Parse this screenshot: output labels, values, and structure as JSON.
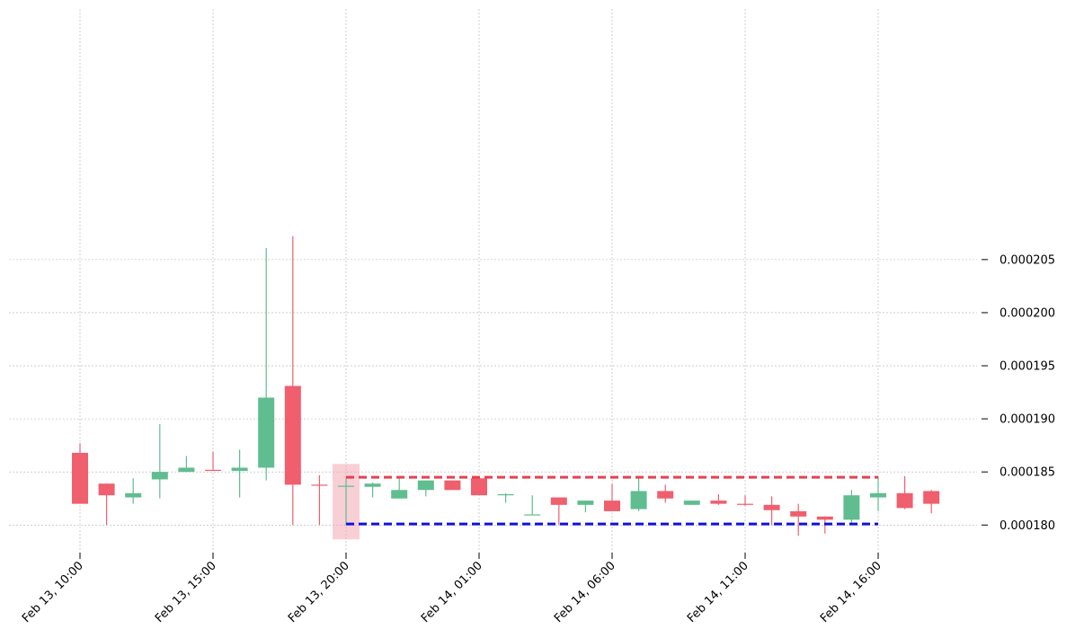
{
  "chart_data": {
    "type": "candlestick",
    "title": "",
    "xlabel": "",
    "ylabel": "",
    "x_start": "2024-02-13 10:00",
    "interval_minutes": 60,
    "ylim": [
      0.0001774,
      0.0002286
    ],
    "y_ticks": [
      "0.000180",
      "0.000185",
      "0.000190",
      "0.000195",
      "0.000200",
      "0.000205"
    ],
    "y_tick_values": [
      0.00018,
      0.000185,
      0.00019,
      0.000195,
      0.0002,
      0.000205
    ],
    "x_tick_labels": [
      "Feb 13, 10:00",
      "Feb 13, 15:00",
      "Feb 13, 20:00",
      "Feb 14, 01:00",
      "Feb 14, 06:00",
      "Feb 14, 11:00",
      "Feb 14, 16:00"
    ],
    "x_tick_indices": [
      0,
      5,
      10,
      15,
      20,
      25,
      30
    ],
    "grid": true,
    "colors": {
      "up": "#5fbd8f",
      "down": "#ef5f6e",
      "highlight": "#f4a8b4",
      "resistance": "#e8404f",
      "support": "#1111dd"
    },
    "candles": [
      {
        "open": 0.0001868,
        "high": 0.0001877,
        "low": 0.000182,
        "close": 0.000182
      },
      {
        "open": 0.0001839,
        "high": 0.0001839,
        "low": 0.00018,
        "close": 0.0001828
      },
      {
        "open": 0.0001826,
        "high": 0.0001844,
        "low": 0.000182,
        "close": 0.000183
      },
      {
        "open": 0.0001843,
        "high": 0.0001895,
        "low": 0.0001825,
        "close": 0.000185
      },
      {
        "open": 0.000185,
        "high": 0.0001865,
        "low": 0.000185,
        "close": 0.0001854
      },
      {
        "open": 0.0001852,
        "high": 0.0001869,
        "low": 0.0001852,
        "close": 0.0001851
      },
      {
        "open": 0.0001851,
        "high": 0.0001871,
        "low": 0.0001826,
        "close": 0.0001854
      },
      {
        "open": 0.0001854,
        "high": 0.0002061,
        "low": 0.0001842,
        "close": 0.000192
      },
      {
        "open": 0.0001931,
        "high": 0.0002072,
        "low": 0.00018,
        "close": 0.0001838
      },
      {
        "open": 0.0001838,
        "high": 0.0001847,
        "low": 0.00018,
        "close": 0.0001837
      },
      {
        "open": 0.0001837,
        "high": 0.0001844,
        "low": 0.00018,
        "close": 0.0001837
      },
      {
        "open": 0.0001836,
        "high": 0.000184,
        "low": 0.0001826,
        "close": 0.0001839
      },
      {
        "open": 0.0001825,
        "high": 0.0001844,
        "low": 0.0001825,
        "close": 0.0001833
      },
      {
        "open": 0.0001833,
        "high": 0.0001842,
        "low": 0.0001827,
        "close": 0.0001842
      },
      {
        "open": 0.0001842,
        "high": 0.0001842,
        "low": 0.0001833,
        "close": 0.0001833
      },
      {
        "open": 0.0001844,
        "high": 0.0001844,
        "low": 0.0001828,
        "close": 0.0001828
      },
      {
        "open": 0.0001828,
        "high": 0.000183,
        "low": 0.0001821,
        "close": 0.0001829
      },
      {
        "open": 0.000181,
        "high": 0.0001828,
        "low": 0.000181,
        "close": 0.000181
      },
      {
        "open": 0.0001826,
        "high": 0.0001826,
        "low": 0.00018,
        "close": 0.0001819
      },
      {
        "open": 0.0001819,
        "high": 0.0001823,
        "low": 0.0001812,
        "close": 0.0001823
      },
      {
        "open": 0.0001823,
        "high": 0.0001839,
        "low": 0.0001813,
        "close": 0.0001813
      },
      {
        "open": 0.0001815,
        "high": 0.0001844,
        "low": 0.0001813,
        "close": 0.0001832
      },
      {
        "open": 0.0001832,
        "high": 0.0001838,
        "low": 0.0001821,
        "close": 0.0001825
      },
      {
        "open": 0.0001819,
        "high": 0.0001823,
        "low": 0.0001819,
        "close": 0.0001823
      },
      {
        "open": 0.0001823,
        "high": 0.0001829,
        "low": 0.0001819,
        "close": 0.000182
      },
      {
        "open": 0.000182,
        "high": 0.0001828,
        "low": 0.0001818,
        "close": 0.0001819
      },
      {
        "open": 0.0001819,
        "high": 0.0001827,
        "low": 0.00018,
        "close": 0.0001814
      },
      {
        "open": 0.0001813,
        "high": 0.000182,
        "low": 0.000179,
        "close": 0.0001808
      },
      {
        "open": 0.0001808,
        "high": 0.0001808,
        "low": 0.0001792,
        "close": 0.0001805
      },
      {
        "open": 0.0001805,
        "high": 0.0001833,
        "low": 0.00018,
        "close": 0.0001828
      },
      {
        "open": 0.0001826,
        "high": 0.0001846,
        "low": 0.0001813,
        "close": 0.000183
      },
      {
        "open": 0.000183,
        "high": 0.0001846,
        "low": 0.0001815,
        "close": 0.0001816
      },
      {
        "open": 0.0001832,
        "high": 0.0001833,
        "low": 0.0001811,
        "close": 0.000182
      }
    ],
    "highlight_candle_index": 10,
    "resistance_level": 0.0001845,
    "support_level": 0.0001801,
    "levels_from_index": 10,
    "levels_to_index": 30
  }
}
